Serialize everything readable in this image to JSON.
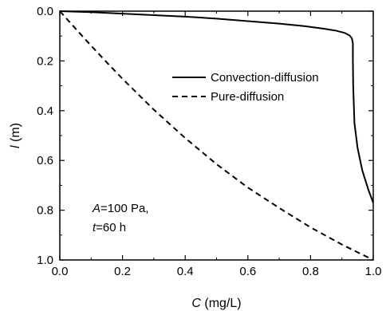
{
  "chart_data": {
    "type": "line",
    "xlabel": {
      "var": "C",
      "unit": " (mg/L)"
    },
    "ylabel": {
      "var": "l",
      "unit": " (m)"
    },
    "xlim": [
      0.0,
      1.0
    ],
    "ylim": [
      0.0,
      1.0
    ],
    "y_inverted": true,
    "x_ticks": [
      "0.0",
      "0.2",
      "0.4",
      "0.6",
      "0.8",
      "1.0"
    ],
    "y_ticks": [
      "0.0",
      "0.2",
      "0.4",
      "0.6",
      "0.8",
      "1.0"
    ],
    "grid": false,
    "legend_position": "top-right",
    "annotation": [
      {
        "var": "A",
        "text": "=100 Pa,"
      },
      {
        "var": "t",
        "text": "=60 h"
      }
    ],
    "series": [
      {
        "name": "Convection-diffusion",
        "style": "solid",
        "color": "#000000",
        "x": [
          0.0,
          0.1,
          0.2,
          0.3,
          0.4,
          0.5,
          0.6,
          0.7,
          0.78,
          0.84,
          0.88,
          0.91,
          0.925,
          0.932,
          0.935,
          0.935,
          0.936,
          0.94,
          0.95,
          0.965,
          0.985,
          1.0
        ],
        "y": [
          0.0,
          0.004,
          0.01,
          0.016,
          0.022,
          0.03,
          0.04,
          0.05,
          0.06,
          0.07,
          0.078,
          0.088,
          0.098,
          0.11,
          0.13,
          0.2,
          0.3,
          0.45,
          0.55,
          0.64,
          0.72,
          0.77
        ]
      },
      {
        "name": "Pure-diffusion",
        "style": "dashed",
        "color": "#000000",
        "x": [
          0.0,
          0.05,
          0.1,
          0.15,
          0.2,
          0.3,
          0.4,
          0.5,
          0.6,
          0.7,
          0.8,
          0.9,
          1.0
        ],
        "y": [
          0.0,
          0.07,
          0.139,
          0.206,
          0.272,
          0.396,
          0.51,
          0.615,
          0.709,
          0.791,
          0.869,
          0.938,
          1.0
        ]
      }
    ]
  }
}
